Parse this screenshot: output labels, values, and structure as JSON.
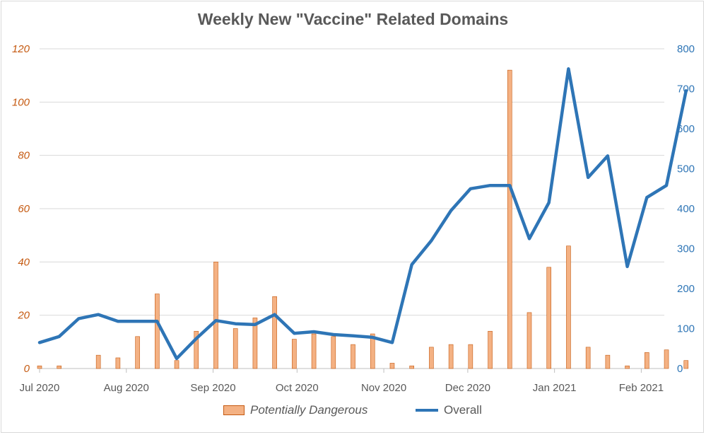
{
  "chart_data": {
    "type": "bar+line",
    "title": "Weekly New \"Vaccine\" Related Domains",
    "x": [
      "2020-07-01",
      "2020-07-08",
      "2020-07-15",
      "2020-07-22",
      "2020-07-29",
      "2020-08-05",
      "2020-08-12",
      "2020-08-19",
      "2020-08-26",
      "2020-09-02",
      "2020-09-09",
      "2020-09-16",
      "2020-09-23",
      "2020-09-30",
      "2020-10-07",
      "2020-10-14",
      "2020-10-21",
      "2020-10-28",
      "2020-11-04",
      "2020-11-11",
      "2020-11-18",
      "2020-11-25",
      "2020-12-02",
      "2020-12-09",
      "2020-12-16",
      "2020-12-23",
      "2020-12-30",
      "2021-01-06",
      "2021-01-13",
      "2021-01-20",
      "2021-01-27",
      "2021-02-03",
      "2021-02-10",
      "2021-02-17",
      "2021-02-24"
    ],
    "x_tick_labels": [
      "Jul 2020",
      "Aug 2020",
      "Sep 2020",
      "Oct 2020",
      "Nov 2020",
      "Dec 2020",
      "Jan 2021",
      "Feb 2021"
    ],
    "x_tick_dates": [
      "2020-07-01",
      "2020-08-01",
      "2020-09-01",
      "2020-10-01",
      "2020-11-01",
      "2020-12-01",
      "2021-01-01",
      "2021-02-01"
    ],
    "series": [
      {
        "name": "Potentially Dangerous",
        "type": "bar",
        "axis": "left",
        "values": [
          1,
          1,
          0,
          5,
          4,
          12,
          28,
          3,
          14,
          40,
          15,
          19,
          27,
          11,
          13,
          12,
          9,
          13,
          2,
          1,
          8,
          9,
          9,
          14,
          112,
          21,
          38,
          46,
          8,
          5,
          1,
          6,
          7,
          3,
          0
        ]
      },
      {
        "name": "Overall",
        "type": "line",
        "axis": "right",
        "values": [
          65,
          80,
          125,
          135,
          118,
          118,
          118,
          25,
          75,
          120,
          112,
          110,
          135,
          88,
          92,
          85,
          82,
          78,
          65,
          260,
          320,
          395,
          450,
          458,
          458,
          325,
          415,
          750,
          478,
          532,
          255,
          428,
          458,
          695,
          null
        ]
      }
    ],
    "y_left": {
      "ticks": [
        "0",
        "20",
        "40",
        "60",
        "80",
        "100",
        "120"
      ],
      "lim": [
        0,
        120
      ]
    },
    "y_right": {
      "ticks": [
        "0",
        "100",
        "200",
        "300",
        "400",
        "500",
        "600",
        "700",
        "800"
      ],
      "lim": [
        0,
        800
      ]
    },
    "grid": "horizontal",
    "legend_position": "bottom",
    "colors": {
      "bar_fill": "#f4b183",
      "bar_stroke": "#c55a11",
      "line": "#2e75b6",
      "grid": "#d9d9d9"
    }
  }
}
